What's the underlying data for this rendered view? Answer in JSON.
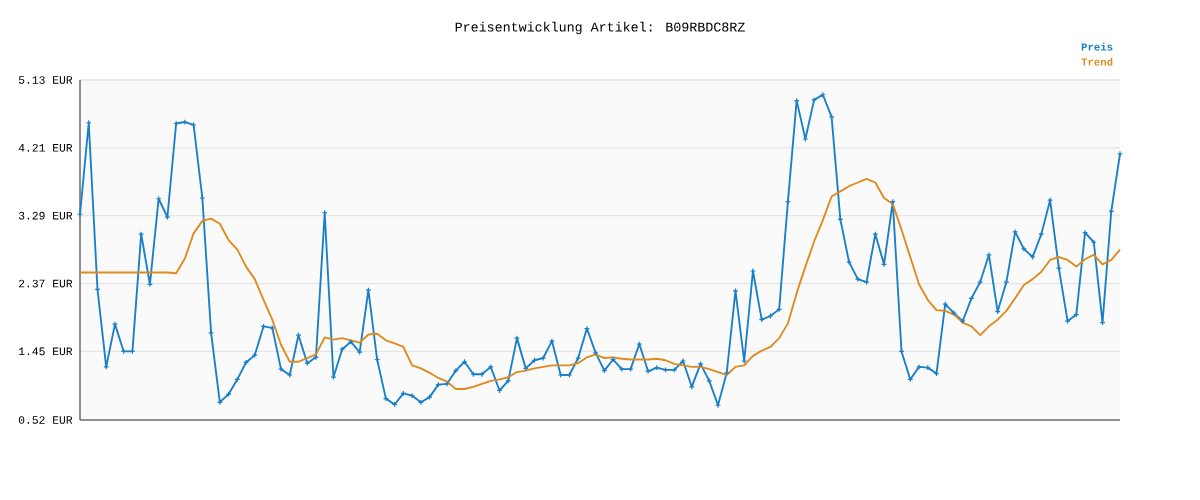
{
  "chart_data": {
    "type": "line",
    "title": "Preisentwicklung Artikel: B09RBDC8RZ",
    "categories": [
      null,
      null,
      null,
      null,
      null,
      null,
      null,
      null,
      null,
      null,
      null,
      null,
      null,
      null,
      null,
      null,
      null,
      null,
      null,
      null,
      null,
      null,
      null,
      null,
      null,
      null,
      null,
      null,
      null,
      null,
      null,
      null,
      null,
      null,
      null,
      null,
      null,
      null,
      null,
      null,
      null,
      null,
      null,
      null,
      null,
      null,
      null,
      null,
      null,
      null,
      null,
      null,
      null,
      null,
      null,
      null,
      null,
      null,
      null,
      null,
      null,
      null,
      null,
      null,
      null,
      null,
      null,
      null,
      null,
      null,
      null,
      null,
      null,
      null,
      null,
      null,
      null,
      null,
      null,
      null,
      null,
      null,
      null,
      null,
      null,
      null,
      null,
      null,
      null,
      null,
      null,
      null,
      null,
      null,
      null,
      null,
      null,
      null,
      null,
      null,
      null,
      null,
      null,
      null,
      null,
      null,
      null,
      null,
      null,
      null,
      null,
      null,
      null,
      null,
      null,
      null,
      null,
      null,
      null,
      null
    ],
    "series": [
      {
        "name": "Preis",
        "color": "#1a7fc9",
        "marker": "cross",
        "values": [
          3.31,
          4.55,
          2.29,
          1.24,
          1.82,
          1.45,
          1.45,
          3.04,
          2.36,
          3.52,
          3.27,
          4.54,
          4.56,
          4.52,
          3.53,
          1.7,
          0.76,
          0.87,
          1.07,
          1.3,
          1.4,
          1.79,
          1.77,
          1.21,
          1.13,
          1.67,
          1.29,
          1.37,
          3.33,
          1.1,
          1.48,
          1.58,
          1.44,
          2.28,
          1.34,
          0.81,
          0.73,
          0.88,
          0.85,
          0.76,
          0.83,
          1.0,
          1.01,
          1.19,
          1.31,
          1.14,
          1.14,
          1.24,
          0.92,
          1.05,
          1.63,
          1.22,
          1.33,
          1.36,
          1.59,
          1.13,
          1.13,
          1.36,
          1.76,
          1.43,
          1.19,
          1.34,
          1.21,
          1.21,
          1.55,
          1.18,
          1.23,
          1.2,
          1.2,
          1.32,
          0.97,
          1.28,
          1.05,
          0.72,
          1.16,
          2.27,
          1.32,
          2.54,
          1.88,
          1.93,
          2.02,
          3.48,
          4.85,
          4.33,
          4.86,
          4.93,
          4.63,
          3.24,
          2.66,
          2.43,
          2.39,
          3.04,
          2.63,
          3.48,
          1.45,
          1.07,
          1.24,
          1.23,
          1.15,
          2.09,
          1.97,
          1.86,
          2.17,
          2.39,
          2.76,
          1.99,
          2.39,
          3.07,
          2.84,
          2.73,
          3.04,
          3.5,
          2.58,
          1.86,
          1.95,
          3.06,
          2.93,
          1.84,
          3.35,
          4.13
        ]
      },
      {
        "name": "Trend",
        "color": "#e08a1e",
        "marker": "none",
        "values": [
          2.52,
          2.52,
          2.52,
          2.52,
          2.52,
          2.52,
          2.52,
          2.52,
          2.52,
          2.52,
          2.52,
          2.51,
          2.71,
          3.05,
          3.22,
          3.25,
          3.18,
          2.96,
          2.83,
          2.6,
          2.43,
          2.15,
          1.88,
          1.54,
          1.31,
          1.31,
          1.36,
          1.41,
          1.64,
          1.61,
          1.63,
          1.6,
          1.57,
          1.68,
          1.69,
          1.6,
          1.56,
          1.51,
          1.26,
          1.22,
          1.16,
          1.09,
          1.04,
          0.94,
          0.94,
          0.97,
          1.01,
          1.05,
          1.07,
          1.1,
          1.17,
          1.19,
          1.22,
          1.24,
          1.26,
          1.26,
          1.26,
          1.29,
          1.37,
          1.41,
          1.36,
          1.37,
          1.35,
          1.34,
          1.34,
          1.34,
          1.35,
          1.33,
          1.28,
          1.26,
          1.24,
          1.24,
          1.21,
          1.17,
          1.13,
          1.24,
          1.26,
          1.39,
          1.46,
          1.51,
          1.63,
          1.83,
          2.24,
          2.6,
          2.94,
          3.23,
          3.55,
          3.62,
          3.69,
          3.74,
          3.79,
          3.74,
          3.53,
          3.45,
          3.1,
          2.73,
          2.36,
          2.15,
          2.01,
          2.0,
          1.95,
          1.84,
          1.79,
          1.67,
          1.79,
          1.88,
          2.0,
          2.17,
          2.35,
          2.43,
          2.53,
          2.69,
          2.73,
          2.69,
          2.6,
          2.7,
          2.76,
          2.63,
          2.69,
          2.83
        ]
      }
    ],
    "ylim": [
      0.52,
      5.13
    ],
    "yticks": [
      {
        "value": 0.52,
        "label": "0.52 EUR"
      },
      {
        "value": 1.45,
        "label": "1.45 EUR"
      },
      {
        "value": 2.37,
        "label": "2.37 EUR"
      },
      {
        "value": 3.29,
        "label": "3.29 EUR"
      },
      {
        "value": 4.21,
        "label": "4.21 EUR"
      },
      {
        "value": 5.13,
        "label": "5.13 EUR"
      }
    ],
    "grid": "y",
    "legend": "top right",
    "tick_labels": "y",
    "line_style": "solid"
  }
}
